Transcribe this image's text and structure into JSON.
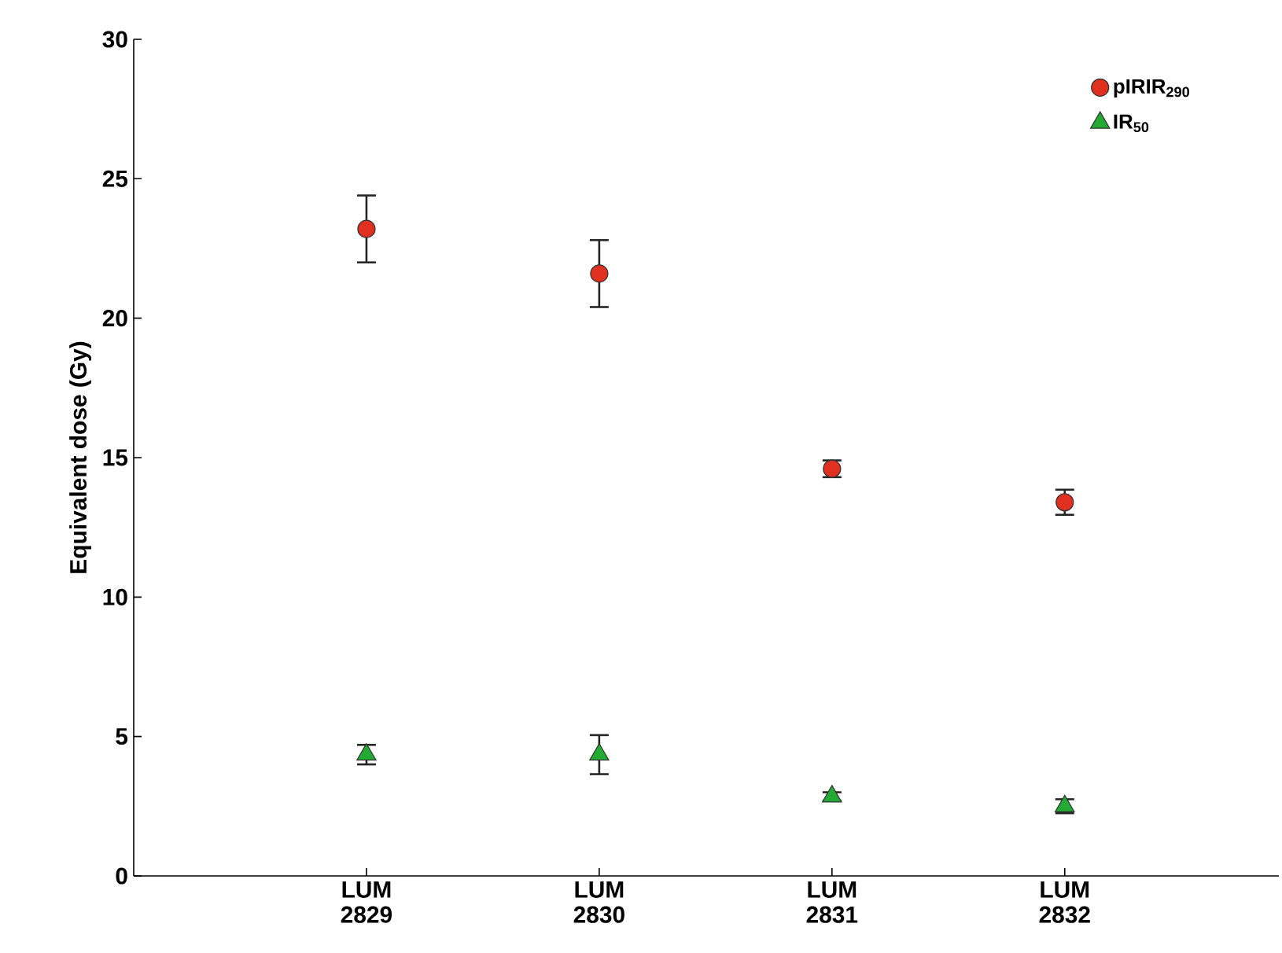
{
  "chart_data": {
    "type": "scatter",
    "ylabel": "Equivalent dose (Gy)",
    "categories": [
      "LUM 2829",
      "LUM 2830",
      "LUM 2831",
      "LUM 2832"
    ],
    "series": [
      {
        "name": "pIRIR$_{290}$",
        "color": "#e03020",
        "marker": "circle",
        "values": [
          23.2,
          21.6,
          14.6,
          13.4
        ],
        "errors": [
          1.2,
          1.2,
          0.3,
          0.45
        ]
      },
      {
        "name": "IR$_{50}$",
        "color": "#22aa33",
        "marker": "triangle",
        "values": [
          4.35,
          4.35,
          2.85,
          2.5
        ],
        "errors": [
          0.35,
          0.7,
          0.15,
          0.25
        ]
      }
    ],
    "ylim": [
      0,
      30
    ],
    "yticks": [
      0,
      5,
      10,
      15,
      20,
      25,
      30
    ],
    "legend": "top right",
    "grid": false
  }
}
